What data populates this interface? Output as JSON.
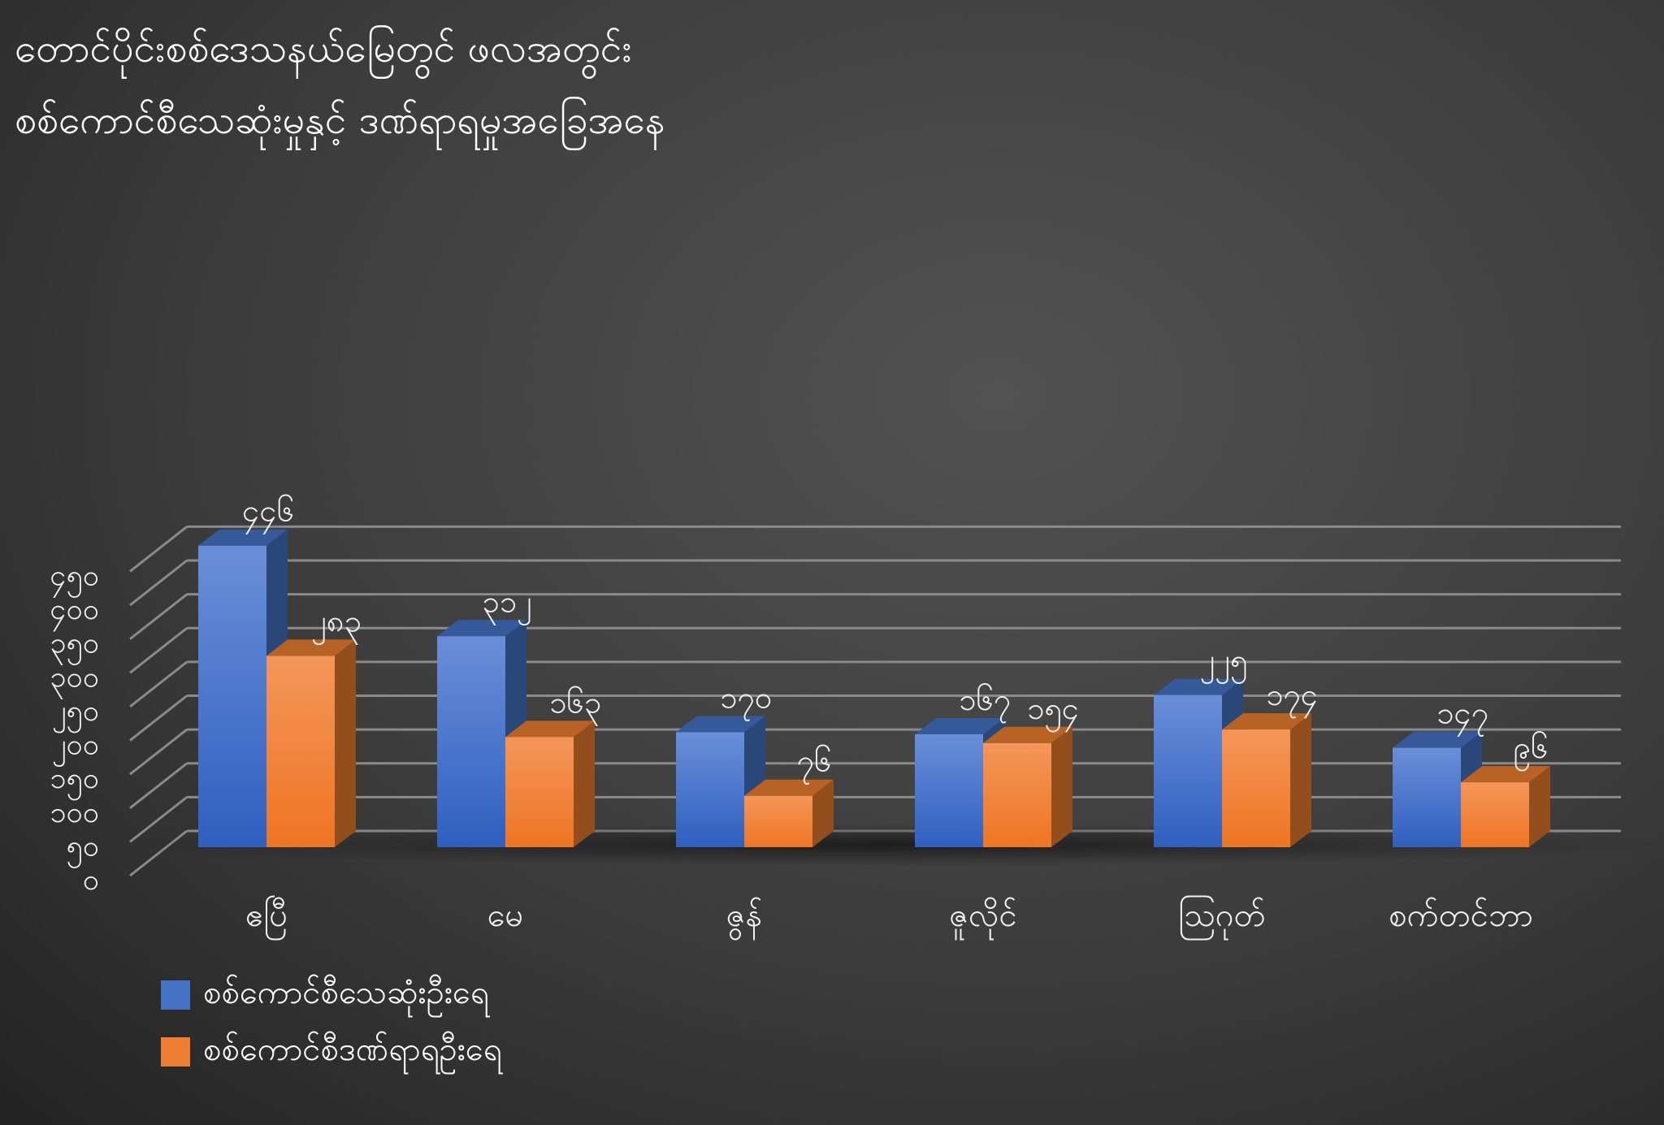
{
  "title": {
    "line1": "တောင်ပိုင်းစစ်ဒေသနယ်မြေတွင် ဖလအတွင်း",
    "line2": "စစ်ကောင်စီသေဆုံးမှုနှင့် ဒဏ်ရာရမှုအခြေအနေ"
  },
  "chart_data": {
    "type": "bar",
    "categories": [
      "ဧပြီ",
      "မေ",
      "ဇွန်",
      "ဇူလိုင်",
      "ဩဂုတ်",
      "စက်တင်ဘာ"
    ],
    "series": [
      {
        "name": "စစ်ကောင်စီသေဆုံးဦးရေ",
        "color": "#4472c4",
        "values": [
          446,
          312,
          170,
          167,
          225,
          147
        ],
        "labels": [
          "၄၄၆",
          "၃၁၂",
          "၁၇၀",
          "၁၆၇",
          "၂၂၅",
          "၁၄၇"
        ]
      },
      {
        "name": "စစ်ကောင်စီဒဏ်ရာရဦးရေ",
        "color": "#ed7d31",
        "values": [
          283,
          163,
          76,
          154,
          174,
          96
        ],
        "labels": [
          "၂၈၃",
          "၁၆၃",
          "၇၆",
          "၁၅၄",
          "၁၇၄",
          "၉၆"
        ]
      }
    ],
    "ylim": [
      0,
      450
    ],
    "yticks": [
      0,
      50,
      100,
      150,
      200,
      250,
      300,
      350,
      400,
      450
    ],
    "ytick_labels": [
      "၀",
      "၅၀",
      "၁၀၀",
      "၁၅၀",
      "၂၀၀",
      "၂၅၀",
      "၃၀၀",
      "၃၅၀",
      "၄၀၀",
      "၄၅၀"
    ],
    "grid": true,
    "legend": "bottom-left",
    "style": "3d-column"
  }
}
